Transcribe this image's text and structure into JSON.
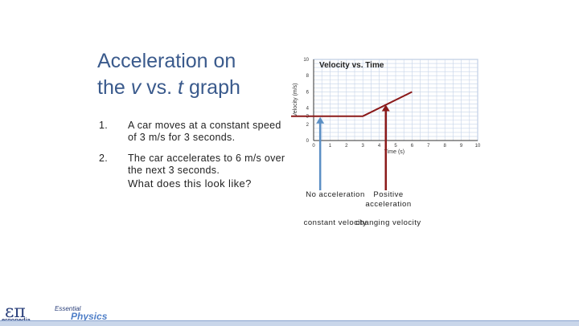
{
  "slide": {
    "title_line1": "Acceleration on",
    "title_line2_pre": "the ",
    "title_v": "v",
    "title_mid": " vs. ",
    "title_t": "t",
    "title_post": " graph",
    "items": [
      {
        "num": "1.",
        "text": "A car moves at a constant speed of 3 m/s for 3 seconds."
      },
      {
        "num": "2.",
        "text": "The car accelerates to 6 m/s over the next 3 seconds."
      }
    ],
    "question": "What does this look like?"
  },
  "chart_data": {
    "type": "line",
    "title": "Velocity vs. Time",
    "xlabel": "Time (s)",
    "ylabel": "Velocity (m/s)",
    "xlim": [
      0,
      10
    ],
    "ylim": [
      0,
      10
    ],
    "xticks": [
      0,
      1,
      2,
      3,
      4,
      5,
      6,
      7,
      8,
      9,
      10
    ],
    "yticks": [
      0,
      2,
      3,
      4,
      6,
      8,
      10
    ],
    "grid": true,
    "series": [
      {
        "x": [
          0,
          3,
          6
        ],
        "y": [
          3,
          3,
          6
        ],
        "color": "#8b1a1a"
      }
    ],
    "colors": {
      "grid": "#c5d3e8",
      "line": "#8b1a1a",
      "arrow_blue": "#5b8fc4",
      "arrow_red": "#8b1a1a"
    }
  },
  "annotations": {
    "left_top": "No acceleration",
    "left_bottom": "constant velocity",
    "right_top": "Positive acceleration",
    "right_bottom": "changing velocity"
  },
  "logo": {
    "symbol": "επ",
    "name": "ergopedia",
    "tag1": "Essential",
    "tag2": "Physics"
  }
}
